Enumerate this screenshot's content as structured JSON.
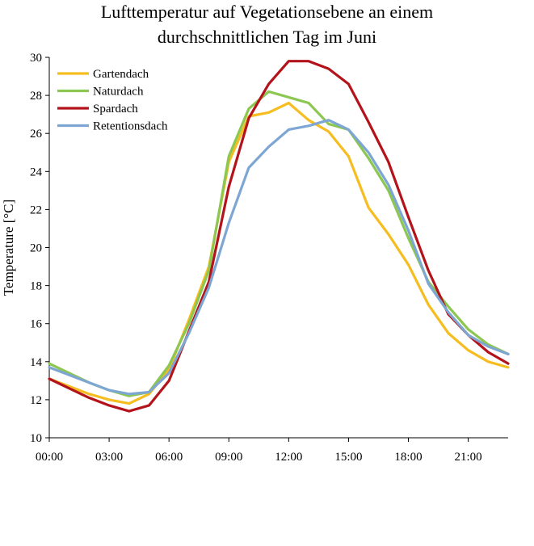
{
  "chart_data": {
    "type": "line",
    "title_line1": "Lufttemperatur  auf Vegetationsebene an einem",
    "title_line2": "durchschnittlichen Tag im Juni",
    "xlabel": "",
    "ylabel": "Temperature [°C]",
    "ylim": [
      10,
      30
    ],
    "xlim": [
      0,
      23
    ],
    "yticks": [
      "10",
      "12",
      "14",
      "16",
      "18",
      "20",
      "22",
      "24",
      "26",
      "28",
      "30"
    ],
    "xticks": [
      "00:00",
      "03:00",
      "06:00",
      "09:00",
      "12:00",
      "15:00",
      "18:00",
      "21:00"
    ],
    "grid": false,
    "legend_position": "top-left",
    "x": [
      0,
      1,
      2,
      3,
      4,
      5,
      6,
      7,
      8,
      9,
      10,
      11,
      12,
      13,
      14,
      15,
      16,
      17,
      18,
      19,
      20,
      21,
      22,
      23
    ],
    "series": [
      {
        "name": "Gartendach",
        "color": "#f5bd1f",
        "values": [
          13.1,
          12.7,
          12.3,
          12.0,
          11.8,
          12.3,
          13.6,
          16.2,
          19.0,
          24.5,
          26.9,
          27.1,
          27.6,
          26.7,
          26.1,
          24.8,
          22.1,
          20.7,
          19.1,
          17.0,
          15.5,
          14.6,
          14.0,
          13.7
        ]
      },
      {
        "name": "Naturdach",
        "color": "#8cc751",
        "values": [
          13.9,
          13.4,
          12.9,
          12.5,
          12.2,
          12.4,
          13.8,
          16.0,
          18.8,
          24.8,
          27.3,
          28.2,
          27.9,
          27.6,
          26.5,
          26.2,
          24.7,
          23.0,
          20.5,
          18.2,
          16.9,
          15.7,
          14.9,
          14.4
        ]
      },
      {
        "name": "Spardach",
        "color": "#b3141b",
        "values": [
          13.1,
          12.6,
          12.1,
          11.7,
          11.4,
          11.7,
          13.0,
          15.6,
          18.2,
          23.2,
          26.8,
          28.6,
          29.8,
          29.8,
          29.4,
          28.6,
          26.6,
          24.5,
          21.6,
          18.8,
          16.5,
          15.4,
          14.5,
          13.9
        ]
      },
      {
        "name": "Retentionsdach",
        "color": "#7ea6d3",
        "values": [
          13.7,
          13.3,
          12.9,
          12.5,
          12.3,
          12.4,
          13.4,
          15.5,
          17.9,
          21.3,
          24.2,
          25.3,
          26.2,
          26.4,
          26.7,
          26.2,
          25.0,
          23.3,
          20.9,
          18.1,
          16.6,
          15.4,
          14.8,
          14.4
        ]
      }
    ]
  }
}
